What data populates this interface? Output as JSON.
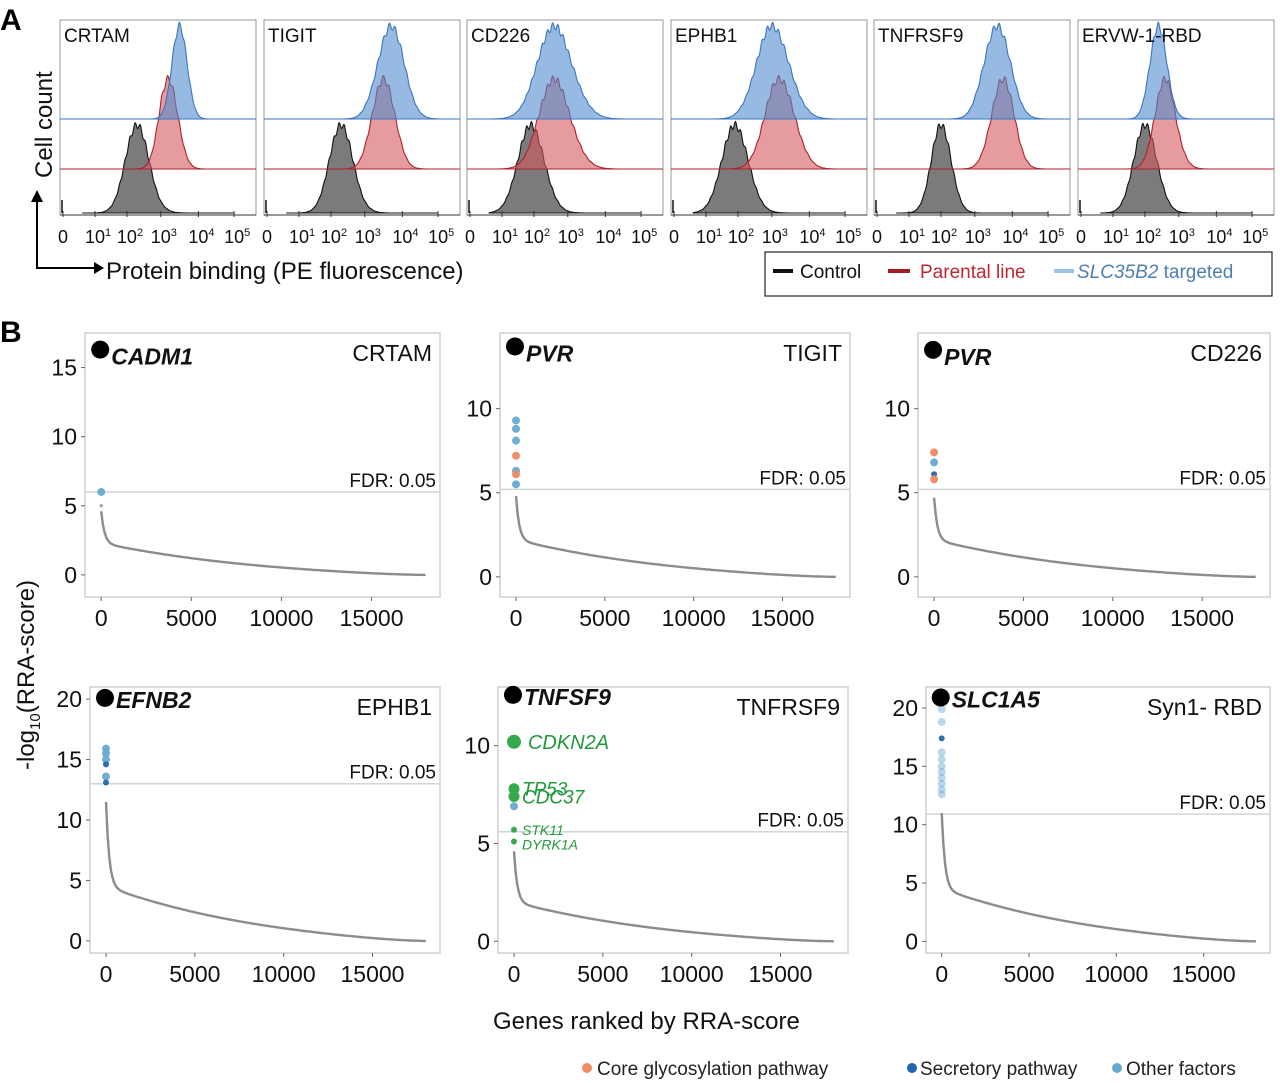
{
  "panels": {
    "a_letter": "A",
    "b_letter": "B"
  },
  "panel_a": {
    "y_axis_label": "Cell count",
    "x_axis_label": "Protein binding (PE fluorescence)",
    "x_ticks": [
      {
        "base": "0",
        "exp": ""
      },
      {
        "base": "10",
        "exp": "1"
      },
      {
        "base": "10",
        "exp": "2"
      },
      {
        "base": "10",
        "exp": "3"
      },
      {
        "base": "10",
        "exp": "4"
      },
      {
        "base": "10",
        "exp": "5"
      }
    ],
    "legend": {
      "items": [
        {
          "label": "Control",
          "italic_prefix": "",
          "color": "#111111",
          "text_color": "#111111"
        },
        {
          "label": "Parental line",
          "italic_prefix": "",
          "color": "#a31b22",
          "text_color": "#c0262e"
        },
        {
          "label": " targeted",
          "italic_prefix": "SLC35B2",
          "color": "#9fc3e6",
          "text_color": "#4f7fae"
        }
      ]
    }
  },
  "panel_b": {
    "y_axis_label": "-log",
    "y_axis_sub": "10",
    "y_axis_suffix": "(RRA-score)",
    "x_axis_label": "Genes ranked by RRA-score",
    "fdr_label": "FDR: 0.05",
    "legend": [
      {
        "label": "Core glycosylation pathway",
        "color": "#ef8a62"
      },
      {
        "label": "Secretory pathway",
        "color": "#2166ac"
      },
      {
        "label": "Other factors",
        "color": "#67a9cf"
      }
    ]
  },
  "chart_data": [
    {
      "type": "area",
      "title": "CRTAM",
      "xlabel": "Protein binding (PE fluorescence)",
      "ylabel": "Cell count",
      "x_scale": "biexponential",
      "x_ticks": [
        "0",
        "10^1",
        "10^2",
        "10^3",
        "10^4",
        "10^5"
      ],
      "series": [
        {
          "name": "Control",
          "peak_log10": 2.3,
          "width": 0.35
        },
        {
          "name": "Parental line",
          "peak_log10": 3.2,
          "width": 0.25
        },
        {
          "name": "SLC35B2 targeted",
          "peak_log10": 3.5,
          "width": 0.2
        }
      ]
    },
    {
      "type": "area",
      "title": "TIGIT",
      "xlabel": "Protein binding (PE fluorescence)",
      "ylabel": "Cell count",
      "x_scale": "biexponential",
      "x_ticks": [
        "0",
        "10^1",
        "10^2",
        "10^3",
        "10^4",
        "10^5"
      ],
      "series": [
        {
          "name": "Control",
          "peak_log10": 2.3,
          "width": 0.35
        },
        {
          "name": "Parental line",
          "peak_log10": 3.5,
          "width": 0.3
        },
        {
          "name": "SLC35B2 targeted",
          "peak_log10": 3.7,
          "width": 0.35
        }
      ]
    },
    {
      "type": "area",
      "title": "CD226",
      "xlabel": "Protein binding (PE fluorescence)",
      "ylabel": "Cell count",
      "x_scale": "biexponential",
      "x_ticks": [
        "0",
        "10^1",
        "10^2",
        "10^3",
        "10^4",
        "10^5"
      ],
      "series": [
        {
          "name": "Control",
          "peak_log10": 1.9,
          "width": 0.4
        },
        {
          "name": "Parental line",
          "peak_log10": 2.6,
          "width": 0.45
        },
        {
          "name": "SLC35B2 targeted",
          "peak_log10": 2.6,
          "width": 0.5
        }
      ]
    },
    {
      "type": "area",
      "title": "EPHB1",
      "xlabel": "Protein binding (PE fluorescence)",
      "ylabel": "Cell count",
      "x_scale": "biexponential",
      "x_ticks": [
        "0",
        "10^1",
        "10^2",
        "10^3",
        "10^4",
        "10^5"
      ],
      "series": [
        {
          "name": "Control",
          "peak_log10": 1.9,
          "width": 0.4
        },
        {
          "name": "Parental line",
          "peak_log10": 3.2,
          "width": 0.4
        },
        {
          "name": "SLC35B2 targeted",
          "peak_log10": 3.0,
          "width": 0.45
        }
      ]
    },
    {
      "type": "area",
      "title": "TNFRSF9",
      "xlabel": "Protein binding (PE fluorescence)",
      "ylabel": "Cell count",
      "x_scale": "biexponential",
      "x_ticks": [
        "0",
        "10^1",
        "10^2",
        "10^3",
        "10^4",
        "10^5"
      ],
      "series": [
        {
          "name": "Control",
          "peak_log10": 2.0,
          "width": 0.3
        },
        {
          "name": "Parental line",
          "peak_log10": 3.75,
          "width": 0.3
        },
        {
          "name": "SLC35B2 targeted",
          "peak_log10": 3.6,
          "width": 0.35
        }
      ]
    },
    {
      "type": "area",
      "title": "ERVW-1-RBD",
      "xlabel": "Protein binding (PE fluorescence)",
      "ylabel": "Cell count",
      "x_scale": "biexponential",
      "x_ticks": [
        "0",
        "10^1",
        "10^2",
        "10^3",
        "10^4",
        "10^5"
      ],
      "series": [
        {
          "name": "Control",
          "peak_log10": 2.0,
          "width": 0.35
        },
        {
          "name": "Parental line",
          "peak_log10": 2.6,
          "width": 0.3
        },
        {
          "name": "SLC35B2 targeted",
          "peak_log10": 2.4,
          "width": 0.25
        }
      ]
    },
    {
      "type": "scatter",
      "title": "CRTAM",
      "xlabel": "Genes ranked by RRA-score",
      "ylabel": "-log10(RRA-score)",
      "xlim": [
        -900,
        18800
      ],
      "ylim": [
        -1.6,
        17.5
      ],
      "xticks": [
        0,
        5000,
        10000,
        15000
      ],
      "yticks": [
        0,
        5,
        10,
        15
      ],
      "fdr": 6.0,
      "top_hit": {
        "gene": "CADM1",
        "y": 16.3
      },
      "highlight": [
        {
          "y": 6.0,
          "category": "Other factors"
        },
        {
          "y": 5.0,
          "category": "other"
        }
      ],
      "curve": {
        "n_genes": 18000,
        "start": 4.6,
        "knee": 2.3,
        "end": 0
      }
    },
    {
      "type": "scatter",
      "title": "TIGIT",
      "xlabel": "Genes ranked by RRA-score",
      "ylabel": "-log10(RRA-score)",
      "xlim": [
        -900,
        18800
      ],
      "ylim": [
        -1.2,
        14.5
      ],
      "xticks": [
        0,
        5000,
        10000,
        15000
      ],
      "yticks": [
        0,
        5,
        10
      ],
      "fdr": 5.2,
      "top_hit": {
        "gene": "PVR",
        "y": 13.7
      },
      "highlight": [
        {
          "y": 9.3,
          "category": "Other factors"
        },
        {
          "y": 8.8,
          "category": "Other factors"
        },
        {
          "y": 8.1,
          "category": "Other factors"
        },
        {
          "y": 7.2,
          "category": "Core glycosylation pathway"
        },
        {
          "y": 6.3,
          "category": "Other factors"
        },
        {
          "y": 6.1,
          "category": "Core glycosylation pathway"
        },
        {
          "y": 5.5,
          "category": "Other factors"
        }
      ],
      "curve": {
        "n_genes": 18000,
        "start": 4.8,
        "knee": 2.2,
        "end": 0
      }
    },
    {
      "type": "scatter",
      "title": "CD226",
      "xlabel": "Genes ranked by RRA-score",
      "ylabel": "-log10(RRA-score)",
      "xlim": [
        -900,
        18800
      ],
      "ylim": [
        -1.2,
        14.5
      ],
      "xticks": [
        0,
        5000,
        10000,
        15000
      ],
      "yticks": [
        0,
        5,
        10
      ],
      "fdr": 5.2,
      "top_hit": {
        "gene": "PVR",
        "y": 13.5
      },
      "highlight": [
        {
          "y": 7.4,
          "category": "Core glycosylation pathway"
        },
        {
          "y": 6.8,
          "category": "Other factors"
        },
        {
          "y": 6.1,
          "category": "Secretory pathway"
        },
        {
          "y": 5.8,
          "category": "Core glycosylation pathway"
        }
      ],
      "curve": {
        "n_genes": 18000,
        "start": 4.7,
        "knee": 2.2,
        "end": 0
      }
    },
    {
      "type": "scatter",
      "title": "EPHB1",
      "xlabel": "Genes ranked by RRA-score",
      "ylabel": "-log10(RRA-score)",
      "xlim": [
        -900,
        18800
      ],
      "ylim": [
        -1.0,
        21.0
      ],
      "xticks": [
        0,
        5000,
        10000,
        15000
      ],
      "yticks": [
        0,
        5,
        10,
        15,
        20
      ],
      "fdr": 13.0,
      "top_hit": {
        "gene": "EFNB2",
        "y": 20.1
      },
      "highlight": [
        {
          "y": 15.9,
          "category": "Other factors"
        },
        {
          "y": 15.5,
          "category": "Other factors"
        },
        {
          "y": 15.0,
          "category": "Other factors"
        },
        {
          "y": 14.6,
          "category": "Secretory pathway"
        },
        {
          "y": 13.6,
          "category": "Other factors"
        },
        {
          "y": 13.1,
          "category": "Secretory pathway"
        }
      ],
      "curve": {
        "n_genes": 18000,
        "start": 11.5,
        "knee": 4.5,
        "end": 0
      }
    },
    {
      "type": "scatter",
      "title": "TNFRSF9",
      "xlabel": "Genes ranked by RRA-score",
      "ylabel": "-log10(RRA-score)",
      "xlim": [
        -900,
        18800
      ],
      "ylim": [
        -0.6,
        13.0
      ],
      "xticks": [
        0,
        5000,
        10000,
        15000
      ],
      "yticks": [
        0,
        5,
        10
      ],
      "fdr": 5.6,
      "top_hit": {
        "gene": "TNFSF9",
        "y": 12.6
      },
      "labeled_hits": [
        {
          "gene": "CDKN2A",
          "y": 10.2,
          "size": "large"
        },
        {
          "gene": "TP53",
          "y": 7.8,
          "size": "medium"
        },
        {
          "gene": "CDC37",
          "y": 7.4,
          "size": "medium"
        },
        {
          "gene": "STK11",
          "y": 5.7,
          "size": "small"
        },
        {
          "gene": "DYRK1A",
          "y": 5.1,
          "size": "small"
        }
      ],
      "highlight": [
        {
          "y": 6.9,
          "category": "Other factors"
        }
      ],
      "curve": {
        "n_genes": 18000,
        "start": 4.6,
        "knee": 2.0,
        "end": 0
      }
    },
    {
      "type": "scatter",
      "title": "Syn1- RBD",
      "xlabel": "Genes ranked by RRA-score",
      "ylabel": "-log10(RRA-score)",
      "xlim": [
        -900,
        18800
      ],
      "ylim": [
        -1.0,
        21.8
      ],
      "xticks": [
        0,
        5000,
        10000,
        15000
      ],
      "yticks": [
        0,
        5,
        10,
        15,
        20
      ],
      "fdr": 10.9,
      "top_hit": {
        "gene": "SLC1A5",
        "y": 20.9
      },
      "highlight": [
        {
          "y": 19.9,
          "category": "Other factors"
        },
        {
          "y": 18.8,
          "category": "Other factors"
        },
        {
          "y": 17.4,
          "category": "Secretory pathway"
        },
        {
          "y": 16.2,
          "category": "Other factors"
        },
        {
          "y": 15.6,
          "category": "Other factors"
        },
        {
          "y": 15.0,
          "category": "Other factors"
        },
        {
          "y": 14.5,
          "category": "Other factors"
        },
        {
          "y": 14.0,
          "category": "Other factors"
        },
        {
          "y": 13.5,
          "category": "Other factors"
        },
        {
          "y": 13.0,
          "category": "Other factors"
        },
        {
          "y": 12.6,
          "category": "Other factors"
        }
      ],
      "curve": {
        "n_genes": 18000,
        "start": 11.0,
        "knee": 4.5,
        "end": 0
      }
    }
  ]
}
